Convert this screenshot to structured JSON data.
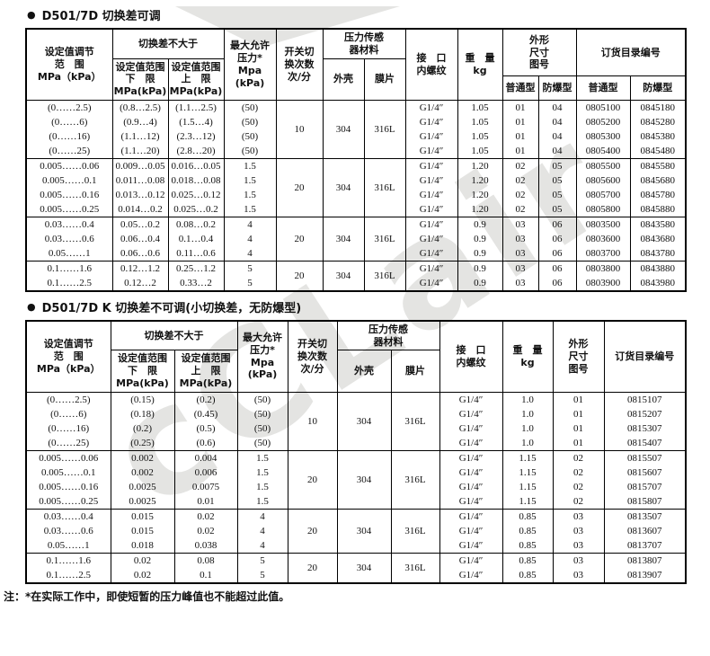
{
  "watermark": "cCLair",
  "bullet": "●",
  "header": {
    "set_range": "设定值调节\n范　围\nMPa（kPa）",
    "diff": "切换差不大于",
    "low": "设定值范围\n下　限\nMPa(kPa)",
    "high": "设定值范围\n上　限\nMPa(kPa)",
    "maxp": "最大允许\n压力*\nMpa\n(kPa)",
    "freq": "开关切\n换次数\n次/分",
    "sensor": "压力传感\n器材料",
    "shell": "外壳",
    "diaphragm": "膜片",
    "port": "接　口\n内螺纹",
    "weight": "重　量\nkg",
    "figure": "外形\n尺寸\n图号",
    "catalog": "订货目录编号",
    "standard": "普通型",
    "explosionproof": "防爆型"
  },
  "tables": [
    {
      "title": "D501/7D 切换差可调",
      "groups": [
        {
          "freq": "10",
          "shell": "304",
          "diaphragm": "316L",
          "rows": [
            {
              "range": "(0……2.5)",
              "low": "(0.8…2.5)",
              "high": "(1.1…2.5)",
              "maxp": "(50)",
              "thread": "G1/4″",
              "weight": "1.05",
              "fig_std": "01",
              "fig_ex": "04",
              "cat_std": "0805100",
              "cat_ex": "0845180"
            },
            {
              "range": "(0……6)",
              "low": "(0.9…4)",
              "high": "(1.5…4)",
              "maxp": "(50)",
              "thread": "G1/4″",
              "weight": "1.05",
              "fig_std": "01",
              "fig_ex": "04",
              "cat_std": "0805200",
              "cat_ex": "0845280"
            },
            {
              "range": "(0……16)",
              "low": "(1.1…12)",
              "high": "(2.3…12)",
              "maxp": "(50)",
              "thread": "G1/4″",
              "weight": "1.05",
              "fig_std": "01",
              "fig_ex": "04",
              "cat_std": "0805300",
              "cat_ex": "0845380"
            },
            {
              "range": "(0……25)",
              "low": "(1.1…20)",
              "high": "(2.8…20)",
              "maxp": "(50)",
              "thread": "G1/4″",
              "weight": "1.05",
              "fig_std": "01",
              "fig_ex": "04",
              "cat_std": "0805400",
              "cat_ex": "0845480"
            }
          ]
        },
        {
          "freq": "20",
          "shell": "304",
          "diaphragm": "316L",
          "rows": [
            {
              "range": "0.005……0.06",
              "low": "0.009…0.05",
              "high": "0.016…0.05",
              "maxp": "1.5",
              "thread": "G1/4″",
              "weight": "1.20",
              "fig_std": "02",
              "fig_ex": "05",
              "cat_std": "0805500",
              "cat_ex": "0845580"
            },
            {
              "range": "0.005……0.1",
              "low": "0.011…0.08",
              "high": "0.018…0.08",
              "maxp": "1.5",
              "thread": "G1/4″",
              "weight": "1.20",
              "fig_std": "02",
              "fig_ex": "05",
              "cat_std": "0805600",
              "cat_ex": "0845680"
            },
            {
              "range": "0.005……0.16",
              "low": "0.013…0.12",
              "high": "0.025…0.12",
              "maxp": "1.5",
              "thread": "G1/4″",
              "weight": "1.20",
              "fig_std": "02",
              "fig_ex": "05",
              "cat_std": "0805700",
              "cat_ex": "0845780"
            },
            {
              "range": "0.005……0.25",
              "low": "0.014…0.2",
              "high": "0.025…0.2",
              "maxp": "1.5",
              "thread": "G1/4″",
              "weight": "1.20",
              "fig_std": "02",
              "fig_ex": "05",
              "cat_std": "0805800",
              "cat_ex": "0845880"
            }
          ]
        },
        {
          "freq": "20",
          "shell": "304",
          "diaphragm": "316L",
          "rows": [
            {
              "range": "0.03……0.4",
              "low": "0.05…0.2",
              "high": "0.08…0.2",
              "maxp": "4",
              "thread": "G1/4″",
              "weight": "0.9",
              "fig_std": "03",
              "fig_ex": "06",
              "cat_std": "0803500",
              "cat_ex": "0843580"
            },
            {
              "range": "0.03……0.6",
              "low": "0.06…0.4",
              "high": "0.1…0.4",
              "maxp": "4",
              "thread": "G1/4″",
              "weight": "0.9",
              "fig_std": "03",
              "fig_ex": "06",
              "cat_std": "0803600",
              "cat_ex": "0843680"
            },
            {
              "range": "0.05……1",
              "low": "0.06…0.6",
              "high": "0.11…0.6",
              "maxp": "4",
              "thread": "G1/4″",
              "weight": "0.9",
              "fig_std": "03",
              "fig_ex": "06",
              "cat_std": "0803700",
              "cat_ex": "0843780"
            }
          ]
        },
        {
          "freq": "20",
          "shell": "304",
          "diaphragm": "316L",
          "rows": [
            {
              "range": "0.1……1.6",
              "low": "0.12…1.2",
              "high": "0.25…1.2",
              "maxp": "5",
              "thread": "G1/4″",
              "weight": "0.9",
              "fig_std": "03",
              "fig_ex": "06",
              "cat_std": "0803800",
              "cat_ex": "0843880"
            },
            {
              "range": "0.1……2.5",
              "low": "0.12…2",
              "high": "0.33…2",
              "maxp": "5",
              "thread": "G1/4″",
              "weight": "0.9",
              "fig_std": "03",
              "fig_ex": "06",
              "cat_std": "0803900",
              "cat_ex": "0843980"
            }
          ]
        }
      ]
    },
    {
      "title": "D501/7D K 切换差不可调(小切换差，无防爆型)",
      "groups": [
        {
          "freq": "10",
          "shell": "304",
          "diaphragm": "316L",
          "rows": [
            {
              "range": "(0……2.5)",
              "low": "(0.15)",
              "high": "(0.2)",
              "maxp": "(50)",
              "thread": "G1/4″",
              "weight": "1.0",
              "fig": "01",
              "cat": "0815107"
            },
            {
              "range": "(0……6)",
              "low": "(0.18)",
              "high": "(0.45)",
              "maxp": "(50)",
              "thread": "G1/4″",
              "weight": "1.0",
              "fig": "01",
              "cat": "0815207"
            },
            {
              "range": "(0……16)",
              "low": "(0.2)",
              "high": "(0.5)",
              "maxp": "(50)",
              "thread": "G1/4″",
              "weight": "1.0",
              "fig": "01",
              "cat": "0815307"
            },
            {
              "range": "(0……25)",
              "low": "(0.25)",
              "high": "(0.6)",
              "maxp": "(50)",
              "thread": "G1/4″",
              "weight": "1.0",
              "fig": "01",
              "cat": "0815407"
            }
          ]
        },
        {
          "freq": "20",
          "shell": "304",
          "diaphragm": "316L",
          "rows": [
            {
              "range": "0.005……0.06",
              "low": "0.002",
              "high": "0.004",
              "maxp": "1.5",
              "thread": "G1/4″",
              "weight": "1.15",
              "fig": "02",
              "cat": "0815507"
            },
            {
              "range": "0.005……0.1",
              "low": "0.002",
              "high": "0.006",
              "maxp": "1.5",
              "thread": "G1/4″",
              "weight": "1.15",
              "fig": "02",
              "cat": "0815607"
            },
            {
              "range": "0.005……0.16",
              "low": "0.0025",
              "high": "0.0075",
              "maxp": "1.5",
              "thread": "G1/4″",
              "weight": "1.15",
              "fig": "02",
              "cat": "0815707"
            },
            {
              "range": "0.005……0.25",
              "low": "0.0025",
              "high": "0.01",
              "maxp": "1.5",
              "thread": "G1/4″",
              "weight": "1.15",
              "fig": "02",
              "cat": "0815807"
            }
          ]
        },
        {
          "freq": "20",
          "shell": "304",
          "diaphragm": "316L",
          "rows": [
            {
              "range": "0.03……0.4",
              "low": "0.015",
              "high": "0.02",
              "maxp": "4",
              "thread": "G1/4″",
              "weight": "0.85",
              "fig": "03",
              "cat": "0813507"
            },
            {
              "range": "0.03……0.6",
              "low": "0.015",
              "high": "0.02",
              "maxp": "4",
              "thread": "G1/4″",
              "weight": "0.85",
              "fig": "03",
              "cat": "0813607"
            },
            {
              "range": "0.05……1",
              "low": "0.018",
              "high": "0.038",
              "maxp": "4",
              "thread": "G1/4″",
              "weight": "0.85",
              "fig": "03",
              "cat": "0813707"
            }
          ]
        },
        {
          "freq": "20",
          "shell": "304",
          "diaphragm": "316L",
          "rows": [
            {
              "range": "0.1……1.6",
              "low": "0.02",
              "high": "0.08",
              "maxp": "5",
              "thread": "G1/4″",
              "weight": "0.85",
              "fig": "03",
              "cat": "0813807"
            },
            {
              "range": "0.1……2.5",
              "low": "0.02",
              "high": "0.1",
              "maxp": "5",
              "thread": "G1/4″",
              "weight": "0.85",
              "fig": "03",
              "cat": "0813907"
            }
          ]
        }
      ]
    }
  ],
  "footnote": "注：*在实际工作中，即使短暂的压力峰值也不能超过此值。"
}
